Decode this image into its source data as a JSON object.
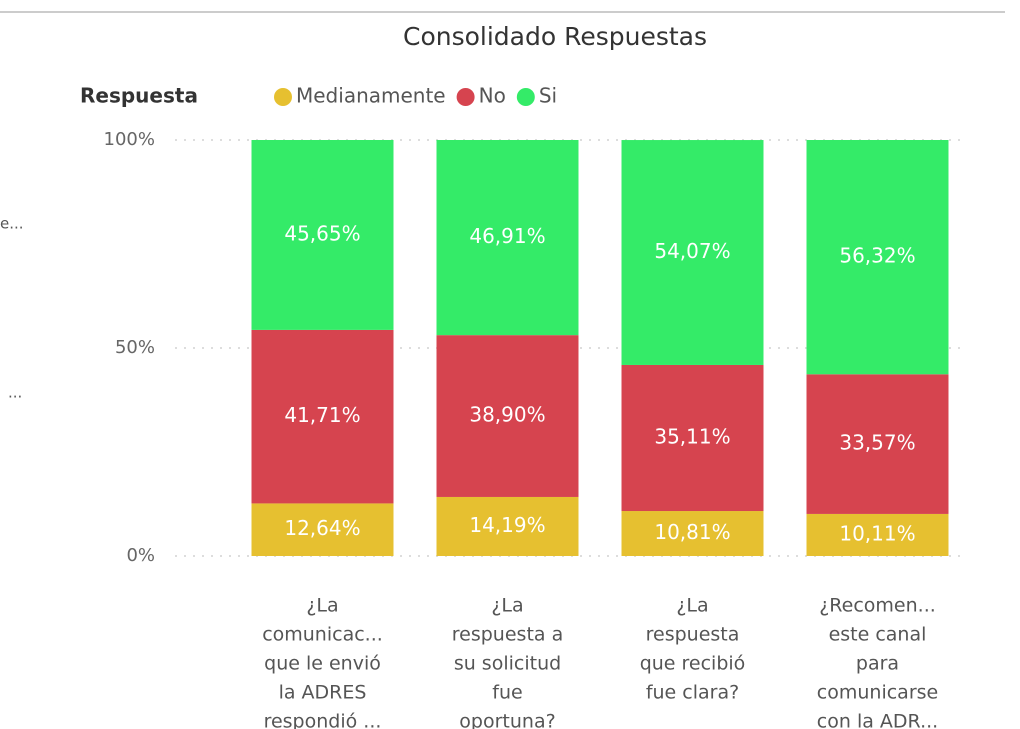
{
  "chart_data": {
    "type": "stacked_bar_100",
    "title": "Consolidado Respuestas",
    "legend_title": "Respuesta",
    "left_fragments": [
      "e...",
      "..."
    ],
    "categories": [
      [
        "¿La",
        "comunicac...",
        "que le envió",
        "la ADRES",
        "respondió ..."
      ],
      [
        "¿La",
        "respuesta a",
        "su solicitud",
        "fue",
        "oportuna?"
      ],
      [
        "¿La",
        "respuesta",
        "que recibió",
        "fue clara?"
      ],
      [
        "¿Recomen...",
        "este canal",
        "para",
        "comunicarse",
        "con la ADR..."
      ]
    ],
    "series": [
      {
        "name": "Medianamente",
        "color": "#e6c030",
        "values": [
          12.64,
          14.19,
          10.81,
          10.11
        ],
        "value_labels": [
          "12,64%",
          "14,19%",
          "10,81%",
          "10,11%"
        ]
      },
      {
        "name": "No",
        "color": "#d6444f",
        "values": [
          41.71,
          38.9,
          35.11,
          33.57
        ],
        "value_labels": [
          "41,71%",
          "38,90%",
          "35,11%",
          "33,57%"
        ]
      },
      {
        "name": "Si",
        "color": "#34eb68",
        "values": [
          45.65,
          46.91,
          54.07,
          56.32
        ],
        "value_labels": [
          "45,65%",
          "46,91%",
          "54,07%",
          "56,32%"
        ]
      }
    ],
    "ylim": [
      0,
      100
    ],
    "yticks": [
      {
        "value": 0,
        "label": "0%"
      },
      {
        "value": 50,
        "label": "50%"
      },
      {
        "value": 100,
        "label": "100%"
      }
    ],
    "grid": true
  }
}
